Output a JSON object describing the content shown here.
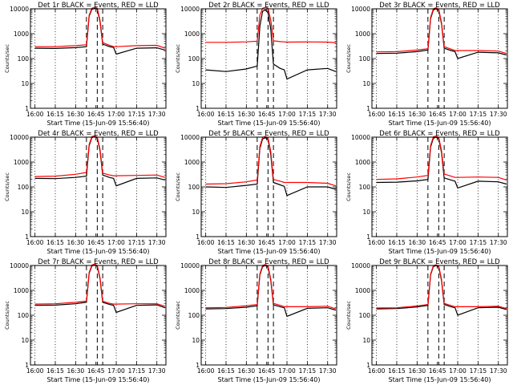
{
  "chart_data": [
    {
      "type": "line",
      "title": "Det 1r BLACK = Events, RED = LLD",
      "xlabel": "Start Time (15-Jun-09 15:56:40)",
      "ylabel": "Counts/sec",
      "x_ticks": [
        "16:00",
        "16:15",
        "16:30",
        "16:45",
        "17:00",
        "17:15",
        "17:30"
      ],
      "y_ticks": [
        "1",
        "10",
        "100",
        "1000",
        "10000"
      ],
      "xlim": [
        "15:56:40",
        "17:36:40"
      ],
      "ylim": [
        1,
        10000
      ],
      "yscale": "log",
      "x": [
        "16:00",
        "16:15",
        "16:30",
        "16:38",
        "16:40",
        "16:42",
        "16:44",
        "16:46",
        "16:48",
        "16:50",
        "16:55",
        "16:58",
        "17:00",
        "17:15",
        "17:30",
        "17:36"
      ],
      "series": [
        {
          "name": "BLACK = Events",
          "color": "#000000",
          "values": [
            260,
            255,
            275,
            300,
            5000,
            9500,
            10500,
            9500,
            3000,
            380,
            300,
            280,
            150,
            260,
            270,
            220
          ]
        },
        {
          "name": "RED = LLD",
          "color": "#ff0000",
          "values": [
            300,
            300,
            330,
            360,
            5500,
            10500,
            11500,
            10500,
            3400,
            440,
            340,
            300,
            300,
            330,
            340,
            260
          ]
        }
      ]
    },
    {
      "type": "line",
      "title": "Det 2r BLACK = Events, RED = LLD",
      "xlabel": "Start Time (15-Jun-09 15:56:40)",
      "ylabel": "Counts/sec",
      "x_ticks": [
        "16:00",
        "16:15",
        "16:30",
        "16:45",
        "17:00",
        "17:15",
        "17:30"
      ],
      "y_ticks": [
        "1",
        "10",
        "100",
        "1000",
        "10000"
      ],
      "xlim": [
        "15:56:40",
        "17:36:40"
      ],
      "ylim": [
        1,
        10000
      ],
      "yscale": "log",
      "x": [
        "16:00",
        "16:15",
        "16:30",
        "16:38",
        "16:40",
        "16:42",
        "16:44",
        "16:46",
        "16:48",
        "16:50",
        "16:55",
        "16:58",
        "17:00",
        "17:15",
        "17:30",
        "17:36"
      ],
      "series": [
        {
          "name": "BLACK = Events",
          "color": "#000000",
          "values": [
            35,
            30,
            38,
            50,
            2000,
            8000,
            9000,
            7000,
            1500,
            60,
            40,
            35,
            15,
            35,
            40,
            30
          ]
        },
        {
          "name": "RED = LLD",
          "color": "#ff0000",
          "values": [
            450,
            450,
            470,
            500,
            5500,
            10500,
            11500,
            10500,
            3500,
            520,
            480,
            470,
            460,
            470,
            460,
            440
          ]
        }
      ]
    },
    {
      "type": "line",
      "title": "Det 3r BLACK = Events, RED = LLD",
      "xlabel": "Start Time (15-Jun-09 15:56:40)",
      "ylabel": "Counts/sec",
      "x_ticks": [
        "16:00",
        "16:15",
        "16:30",
        "16:45",
        "17:00",
        "17:15",
        "17:30"
      ],
      "y_ticks": [
        "1",
        "10",
        "100",
        "1000",
        "10000"
      ],
      "xlim": [
        "15:56:40",
        "17:36:40"
      ],
      "ylim": [
        1,
        10000
      ],
      "yscale": "log",
      "x": [
        "16:00",
        "16:15",
        "16:30",
        "16:38",
        "16:40",
        "16:42",
        "16:44",
        "16:46",
        "16:48",
        "16:50",
        "16:55",
        "16:58",
        "17:00",
        "17:15",
        "17:30",
        "17:36"
      ],
      "series": [
        {
          "name": "BLACK = Events",
          "color": "#000000",
          "values": [
            160,
            165,
            190,
            220,
            4000,
            9000,
            10000,
            8500,
            2500,
            260,
            210,
            190,
            100,
            180,
            170,
            140
          ]
        },
        {
          "name": "RED = LLD",
          "color": "#ff0000",
          "values": [
            185,
            190,
            220,
            250,
            4500,
            10000,
            11000,
            9500,
            2800,
            300,
            240,
            210,
            210,
            210,
            200,
            160
          ]
        }
      ]
    },
    {
      "type": "line",
      "title": "Det 4r BLACK = Events, RED = LLD",
      "xlabel": "Start Time (15-Jun-09 15:56:40)",
      "ylabel": "Counts/sec",
      "x_ticks": [
        "16:00",
        "16:15",
        "16:30",
        "16:45",
        "17:00",
        "17:15",
        "17:30"
      ],
      "y_ticks": [
        "1",
        "10",
        "100",
        "1000",
        "10000"
      ],
      "xlim": [
        "15:56:40",
        "17:36:40"
      ],
      "ylim": [
        1,
        10000
      ],
      "yscale": "log",
      "x": [
        "16:00",
        "16:15",
        "16:30",
        "16:38",
        "16:40",
        "16:42",
        "16:44",
        "16:46",
        "16:48",
        "16:50",
        "16:55",
        "16:58",
        "17:00",
        "17:15",
        "17:30",
        "17:36"
      ],
      "series": [
        {
          "name": "BLACK = Events",
          "color": "#000000",
          "values": [
            220,
            215,
            240,
            270,
            4500,
            9500,
            10500,
            9000,
            2800,
            300,
            240,
            220,
            110,
            220,
            230,
            190
          ]
        },
        {
          "name": "RED = LLD",
          "color": "#ff0000",
          "values": [
            260,
            270,
            320,
            380,
            5000,
            10500,
            11500,
            10000,
            3200,
            360,
            300,
            280,
            280,
            290,
            300,
            240
          ]
        }
      ]
    },
    {
      "type": "line",
      "title": "Det 5r BLACK = Events, RED = LLD",
      "xlabel": "Start Time (15-Jun-09 15:56:40)",
      "ylabel": "Counts/sec",
      "x_ticks": [
        "16:00",
        "16:15",
        "16:30",
        "16:45",
        "17:00",
        "17:15",
        "17:30"
      ],
      "y_ticks": [
        "1",
        "10",
        "100",
        "1000",
        "10000"
      ],
      "xlim": [
        "15:56:40",
        "17:36:40"
      ],
      "ylim": [
        1,
        10000
      ],
      "yscale": "log",
      "x": [
        "16:00",
        "16:15",
        "16:30",
        "16:38",
        "16:40",
        "16:42",
        "16:44",
        "16:46",
        "16:48",
        "16:50",
        "16:55",
        "16:58",
        "17:00",
        "17:15",
        "17:30",
        "17:36"
      ],
      "series": [
        {
          "name": "BLACK = Events",
          "color": "#000000",
          "values": [
            100,
            95,
            115,
            130,
            3500,
            8500,
            9500,
            8000,
            2000,
            150,
            120,
            105,
            45,
            100,
            100,
            80
          ]
        },
        {
          "name": "RED = LLD",
          "color": "#ff0000",
          "values": [
            130,
            135,
            160,
            190,
            4200,
            9800,
            10800,
            9200,
            2600,
            200,
            170,
            150,
            150,
            150,
            140,
            110
          ]
        }
      ]
    },
    {
      "type": "line",
      "title": "Det 6r BLACK = Events, RED = LLD",
      "xlabel": "Start Time (15-Jun-09 15:56:40)",
      "ylabel": "Counts/sec",
      "x_ticks": [
        "16:00",
        "16:15",
        "16:30",
        "16:45",
        "17:00",
        "17:15",
        "17:30"
      ],
      "y_ticks": [
        "1",
        "10",
        "100",
        "1000",
        "10000"
      ],
      "xlim": [
        "15:56:40",
        "17:36:40"
      ],
      "ylim": [
        1,
        10000
      ],
      "yscale": "log",
      "x": [
        "16:00",
        "16:15",
        "16:30",
        "16:38",
        "16:40",
        "16:42",
        "16:44",
        "16:46",
        "16:48",
        "16:50",
        "16:55",
        "16:58",
        "17:00",
        "17:15",
        "17:30",
        "17:36"
      ],
      "series": [
        {
          "name": "BLACK = Events",
          "color": "#000000",
          "values": [
            150,
            155,
            175,
            200,
            4000,
            9000,
            10000,
            8500,
            2400,
            230,
            190,
            170,
            90,
            170,
            160,
            130
          ]
        },
        {
          "name": "RED = LLD",
          "color": "#ff0000",
          "values": [
            200,
            210,
            250,
            290,
            4600,
            10200,
            11200,
            9600,
            2900,
            330,
            270,
            240,
            240,
            250,
            240,
            190
          ]
        }
      ]
    },
    {
      "type": "line",
      "title": "Det 7r BLACK = Events, RED = LLD",
      "xlabel": "Start Time (15-Jun-09 15:56:40)",
      "ylabel": "Counts/sec",
      "x_ticks": [
        "16:00",
        "16:15",
        "16:30",
        "16:45",
        "17:00",
        "17:15",
        "17:30"
      ],
      "y_ticks": [
        "1",
        "10",
        "100",
        "1000",
        "10000"
      ],
      "xlim": [
        "15:56:40",
        "17:36:40"
      ],
      "ylim": [
        1,
        10000
      ],
      "yscale": "log",
      "x": [
        "16:00",
        "16:15",
        "16:30",
        "16:38",
        "16:40",
        "16:42",
        "16:44",
        "16:46",
        "16:48",
        "16:50",
        "16:55",
        "16:58",
        "17:00",
        "17:15",
        "17:30",
        "17:36"
      ],
      "series": [
        {
          "name": "BLACK = Events",
          "color": "#000000",
          "values": [
            250,
            255,
            290,
            330,
            4800,
            9500,
            10500,
            9200,
            2900,
            330,
            270,
            250,
            130,
            250,
            260,
            200
          ]
        },
        {
          "name": "RED = LLD",
          "color": "#ff0000",
          "values": [
            280,
            290,
            330,
            370,
            5200,
            10400,
            11400,
            10000,
            3200,
            370,
            300,
            280,
            280,
            290,
            290,
            230
          ]
        }
      ]
    },
    {
      "type": "line",
      "title": "Det 8r BLACK = Events, RED = LLD",
      "xlabel": "Start Time (15-Jun-09 15:56:40)",
      "ylabel": "Counts/sec",
      "x_ticks": [
        "16:00",
        "16:15",
        "16:30",
        "16:45",
        "17:00",
        "17:15",
        "17:30"
      ],
      "y_ticks": [
        "1",
        "10",
        "100",
        "1000",
        "10000"
      ],
      "xlim": [
        "15:56:40",
        "17:36:40"
      ],
      "ylim": [
        1,
        10000
      ],
      "yscale": "log",
      "x": [
        "16:00",
        "16:15",
        "16:30",
        "16:38",
        "16:40",
        "16:42",
        "16:44",
        "16:46",
        "16:48",
        "16:50",
        "16:55",
        "16:58",
        "17:00",
        "17:15",
        "17:30",
        "17:36"
      ],
      "series": [
        {
          "name": "BLACK = Events",
          "color": "#000000",
          "values": [
            180,
            185,
            210,
            240,
            4200,
            9000,
            10000,
            8500,
            2500,
            260,
            220,
            200,
            90,
            190,
            200,
            160
          ]
        },
        {
          "name": "RED = LLD",
          "color": "#ff0000",
          "values": [
            200,
            205,
            240,
            270,
            4600,
            10000,
            11000,
            9400,
            2800,
            300,
            250,
            220,
            220,
            220,
            230,
            180
          ]
        }
      ]
    },
    {
      "type": "line",
      "title": "Det 9r BLACK = Events, RED = LLD",
      "xlabel": "Start Time (15-Jun-09 15:56:40)",
      "ylabel": "Counts/sec",
      "x_ticks": [
        "16:00",
        "16:15",
        "16:30",
        "16:45",
        "17:00",
        "17:15",
        "17:30"
      ],
      "y_ticks": [
        "1",
        "10",
        "100",
        "1000",
        "10000"
      ],
      "xlim": [
        "15:56:40",
        "17:36:40"
      ],
      "ylim": [
        1,
        10000
      ],
      "yscale": "log",
      "x": [
        "16:00",
        "16:15",
        "16:30",
        "16:38",
        "16:40",
        "16:42",
        "16:44",
        "16:46",
        "16:48",
        "16:50",
        "16:55",
        "16:58",
        "17:00",
        "17:15",
        "17:30",
        "17:36"
      ],
      "series": [
        {
          "name": "BLACK = Events",
          "color": "#000000",
          "values": [
            180,
            185,
            215,
            250,
            4200,
            9000,
            10000,
            8500,
            2500,
            270,
            220,
            200,
            100,
            200,
            210,
            170
          ]
        },
        {
          "name": "RED = LLD",
          "color": "#ff0000",
          "values": [
            195,
            200,
            235,
            270,
            4500,
            9800,
            10800,
            9300,
            2800,
            300,
            245,
            220,
            220,
            220,
            230,
            185
          ]
        }
      ]
    }
  ],
  "vertical_markers": {
    "dotted": [
      "16:00",
      "16:15",
      "16:30",
      "17:00",
      "17:15",
      "17:30"
    ],
    "dashed": [
      "16:38",
      "16:46",
      "16:50"
    ]
  },
  "colors": {
    "events": "#000000",
    "lld": "#ff0000",
    "background": "#ffffff"
  }
}
